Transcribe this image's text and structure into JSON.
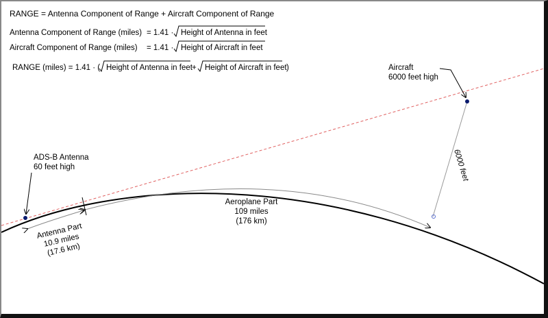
{
  "formulas": {
    "range_definition": "RANGE = Antenna Component of Range  + Aircraft Component of Range",
    "antenna": {
      "label": "Antenna Component of Range  (miles)",
      "factor": "= 1.41 ·",
      "radicand": "Height of Antenna in feet"
    },
    "aircraft": {
      "label": "Aircraft Component of Range  (miles)",
      "factor": "= 1.41 ·",
      "radicand": "Height of Aircraft in feet"
    },
    "range": {
      "prefix": "RANGE (miles) = 1.41 · (",
      "radicand_1": "Height of Antenna in feet",
      "plus": "+",
      "radicand_2": "Height of Aircraft in feet",
      "close": ")"
    }
  },
  "labels": {
    "antenna": {
      "name": "ADS-B Antenna",
      "height": "60 feet high"
    },
    "aircraft": {
      "name": "Aircraft",
      "height": "6000 feet high"
    },
    "aeroplane_part": {
      "name": "Aeroplane Part",
      "miles": "109 miles",
      "km": "(176 km)"
    },
    "antenna_part": {
      "name": "Antenna Part",
      "miles": "10.9 miles",
      "km": "(17.6 km)"
    },
    "altitude": "6000 feet"
  }
}
